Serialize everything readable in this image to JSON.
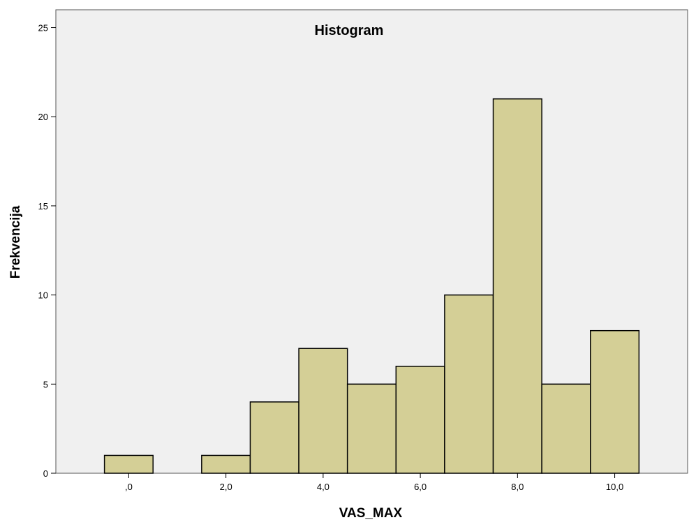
{
  "chart_data": {
    "type": "bar",
    "title": "Histogram",
    "xlabel": "VAS_MAX",
    "ylabel": "Frekvencija",
    "bins": [
      {
        "x": 0,
        "value": 1
      },
      {
        "x": 1,
        "value": 0
      },
      {
        "x": 2,
        "value": 1
      },
      {
        "x": 3,
        "value": 4
      },
      {
        "x": 4,
        "value": 7
      },
      {
        "x": 5,
        "value": 5
      },
      {
        "x": 6,
        "value": 6
      },
      {
        "x": 7,
        "value": 10
      },
      {
        "x": 8,
        "value": 21
      },
      {
        "x": 9,
        "value": 5
      },
      {
        "x": 10,
        "value": 8
      }
    ],
    "xlim": [
      -1.5,
      11.5
    ],
    "ylim": [
      0,
      26
    ],
    "x_ticks": [
      {
        "value": 0,
        "label": ",0"
      },
      {
        "value": 2,
        "label": "2,0"
      },
      {
        "value": 4,
        "label": "4,0"
      },
      {
        "value": 6,
        "label": "6,0"
      },
      {
        "value": 8,
        "label": "8,0"
      },
      {
        "value": 10,
        "label": "10,0"
      }
    ],
    "y_ticks": [
      {
        "value": 0,
        "label": "0"
      },
      {
        "value": 5,
        "label": "5"
      },
      {
        "value": 10,
        "label": "10"
      },
      {
        "value": 15,
        "label": "15"
      },
      {
        "value": 20,
        "label": "20"
      },
      {
        "value": 25,
        "label": "25"
      }
    ],
    "grid": false,
    "bar_color": "#d4cf96",
    "bar_edge_color": "#000000",
    "plot_background": "#f0f0f0"
  }
}
